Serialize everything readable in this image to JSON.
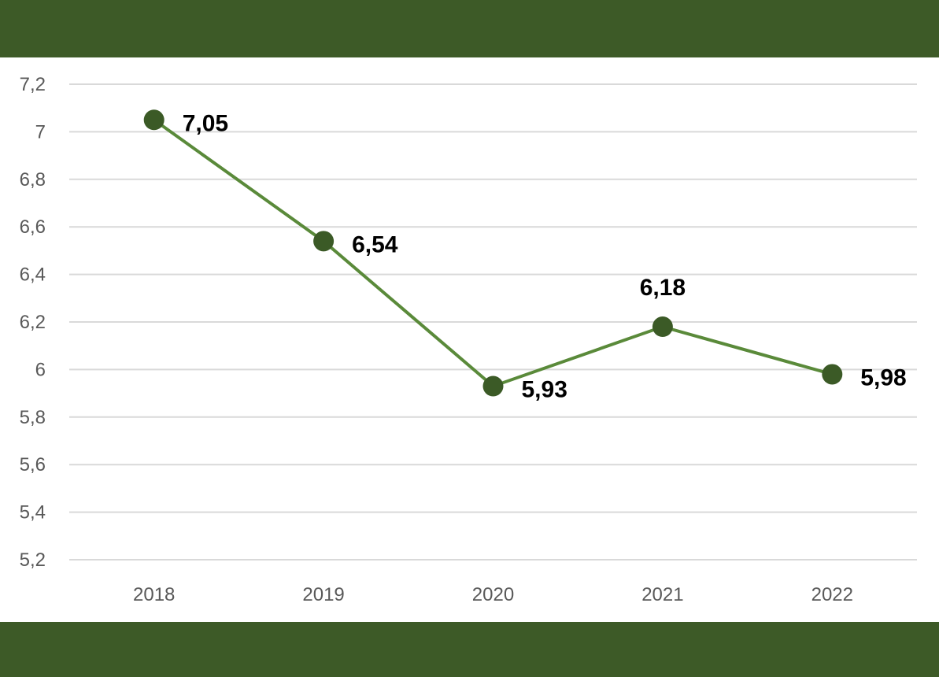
{
  "colors": {
    "band": "#3d5a27",
    "line": "#5a8a3a",
    "marker": "#3b5a26",
    "grid": "#d9d9d9"
  },
  "chart_data": {
    "type": "line",
    "categories": [
      "2018",
      "2019",
      "2020",
      "2021",
      "2022"
    ],
    "values": [
      7.05,
      6.54,
      5.93,
      6.18,
      5.98
    ],
    "data_labels": [
      "7,05",
      "6,54",
      "5,93",
      "6,18",
      "5,98"
    ],
    "title": "",
    "xlabel": "",
    "ylabel": "",
    "ylim": [
      5.2,
      7.2
    ],
    "yticks": [
      7.2,
      7.0,
      6.8,
      6.6,
      6.4,
      6.2,
      6.0,
      5.8,
      5.6,
      5.4,
      5.2
    ],
    "ytick_labels": [
      "7,2",
      "7",
      "6,8",
      "6,6",
      "6,4",
      "6,2",
      "6",
      "5,8",
      "5,6",
      "5,4",
      "5,2"
    ],
    "grid": true,
    "legend": "none"
  }
}
